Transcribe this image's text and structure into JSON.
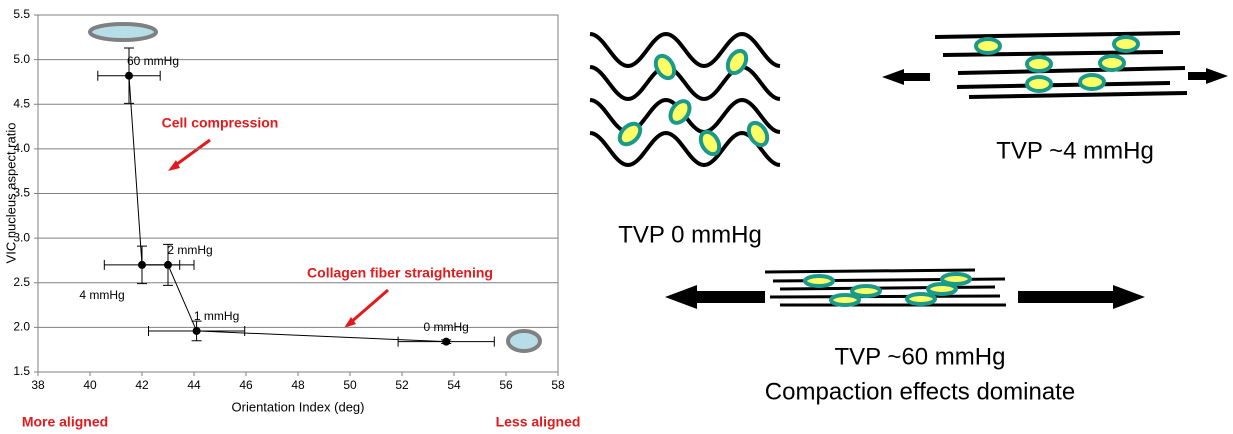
{
  "chart_data": {
    "type": "scatter",
    "xlabel": "Orientation Index (deg)",
    "ylabel": "VIC nucleus aspect ratio",
    "xlim": [
      38,
      58
    ],
    "xticks": [
      38,
      40,
      42,
      44,
      46,
      48,
      50,
      52,
      54,
      56,
      58
    ],
    "ylim": [
      1.5,
      5.5
    ],
    "yticks": [
      1.5,
      2.0,
      2.5,
      3.0,
      3.5,
      4.0,
      4.5,
      5.0,
      5.5
    ],
    "grid": true,
    "series": [
      {
        "color": "#000000",
        "x": [
          41.5,
          42.0,
          43.0,
          44.1,
          53.7
        ],
        "y": [
          4.82,
          2.7,
          2.7,
          1.96,
          1.84
        ],
        "xerr": [
          1.2,
          1.45,
          1.0,
          1.85,
          1.85
        ],
        "yerr": [
          0.31,
          0.21,
          0.23,
          0.11,
          0.02
        ],
        "point_labels": [
          "60 mmHg",
          "4 mmHg",
          "2 mmHg",
          "1 mmHg",
          "0 mmHg"
        ]
      }
    ],
    "annotations": [
      "Cell compression",
      "Collagen fiber straightening",
      "More aligned",
      "Less aligned"
    ]
  },
  "diagram_labels": [
    "TVP 0 mmHg",
    "TVP ~4 mmHg",
    "TVP ~60 mmHg",
    "Compaction effects dominate"
  ]
}
